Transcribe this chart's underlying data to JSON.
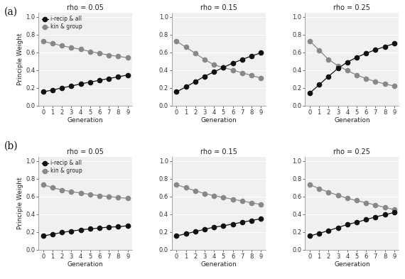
{
  "generations": [
    0,
    1,
    2,
    3,
    4,
    5,
    6,
    7,
    8,
    9
  ],
  "row_a": {
    "rho_005": {
      "black": [
        0.155,
        0.175,
        0.2,
        0.22,
        0.245,
        0.265,
        0.285,
        0.305,
        0.325,
        0.345
      ],
      "gray": [
        0.725,
        0.7,
        0.675,
        0.655,
        0.635,
        0.61,
        0.59,
        0.57,
        0.555,
        0.54
      ]
    },
    "rho_015": {
      "black": [
        0.155,
        0.21,
        0.27,
        0.33,
        0.38,
        0.43,
        0.48,
        0.52,
        0.56,
        0.595
      ],
      "gray": [
        0.725,
        0.66,
        0.59,
        0.52,
        0.46,
        0.43,
        0.4,
        0.37,
        0.34,
        0.31
      ]
    },
    "rho_025": {
      "black": [
        0.14,
        0.235,
        0.33,
        0.42,
        0.49,
        0.545,
        0.59,
        0.63,
        0.665,
        0.7
      ],
      "gray": [
        0.73,
        0.625,
        0.52,
        0.45,
        0.395,
        0.345,
        0.305,
        0.27,
        0.245,
        0.22
      ]
    }
  },
  "row_b": {
    "rho_005": {
      "black": [
        0.155,
        0.175,
        0.195,
        0.21,
        0.225,
        0.235,
        0.245,
        0.255,
        0.26,
        0.27
      ],
      "gray": [
        0.735,
        0.7,
        0.675,
        0.655,
        0.64,
        0.625,
        0.61,
        0.6,
        0.59,
        0.58
      ]
    },
    "rho_015": {
      "black": [
        0.155,
        0.18,
        0.205,
        0.23,
        0.255,
        0.27,
        0.29,
        0.31,
        0.33,
        0.35
      ],
      "gray": [
        0.735,
        0.7,
        0.665,
        0.635,
        0.61,
        0.59,
        0.57,
        0.55,
        0.53,
        0.51
      ]
    },
    "rho_025": {
      "black": [
        0.155,
        0.185,
        0.215,
        0.25,
        0.285,
        0.31,
        0.34,
        0.37,
        0.395,
        0.42
      ],
      "gray": [
        0.735,
        0.69,
        0.65,
        0.615,
        0.58,
        0.555,
        0.53,
        0.505,
        0.478,
        0.452
      ]
    }
  },
  "titles": [
    "rho = 0.05",
    "rho = 0.15",
    "rho = 0.25"
  ],
  "ylabel": "Principle Weight",
  "xlabel": "Generation",
  "ylim": [
    0.0,
    1.05
  ],
  "yticks": [
    0.0,
    0.2,
    0.4,
    0.6,
    0.8,
    1.0
  ],
  "xticks": [
    0,
    1,
    2,
    3,
    4,
    5,
    6,
    7,
    8,
    9
  ],
  "black_color": "#111111",
  "gray_color": "#888888",
  "legend_labels": [
    "i-recip & all",
    "kin & group"
  ],
  "row_labels": [
    "(a)",
    "(b)"
  ],
  "marker_size": 4.5,
  "linewidth": 0.9
}
